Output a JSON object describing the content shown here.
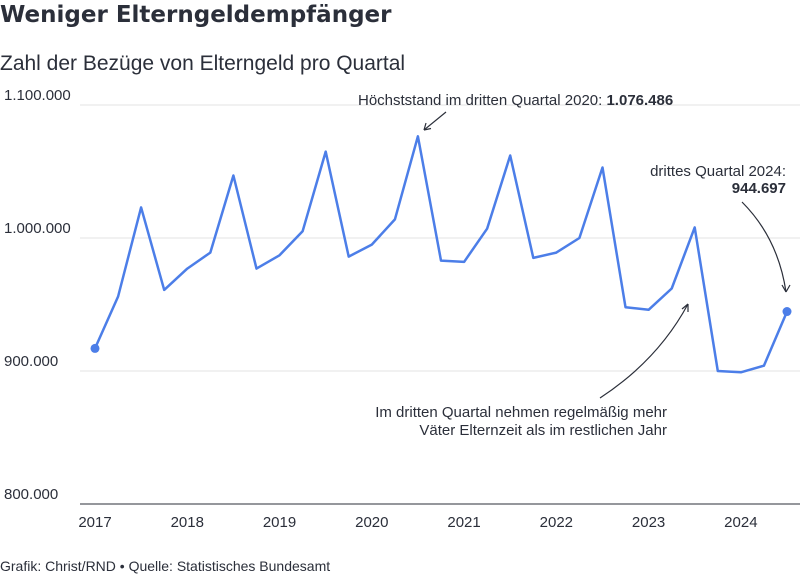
{
  "chart_data": {
    "type": "line",
    "title": "Weniger Elterngeldempfänger",
    "subtitle": "Zahl der Bezüge von Elterngeld pro Quartal",
    "footer": "Grafik: Christ/RND • Quelle: Statistisches Bundesamt",
    "ylim": [
      800000,
      1100000
    ],
    "yticks": [
      800000,
      900000,
      1000000,
      1100000
    ],
    "ytick_labels": [
      "800.000",
      "900.000",
      "1.000.000",
      "1.100.000"
    ],
    "xtick_labels": [
      "2017",
      "2018",
      "2019",
      "2020",
      "2021",
      "2022",
      "2023",
      "2024"
    ],
    "grid": true,
    "series": [
      {
        "values": [
          917000,
          956000,
          1023000,
          961000,
          977000,
          989000,
          1047000,
          977000,
          987000,
          1005000,
          1065000,
          986000,
          995000,
          1014000,
          1076486,
          983000,
          982000,
          1007000,
          1062000,
          985000,
          989000,
          1000000,
          1053000,
          948000,
          946000,
          962000,
          1008000,
          900000,
          899000,
          904000,
          944697
        ]
      }
    ],
    "annotations": {
      "peak_text": "Höchststand im dritten Quartal 2020: ",
      "peak_value": "1.076.486",
      "last_text": "drittes Quartal 2024:",
      "last_value": "944.697",
      "note_line1": "Im dritten Quartal nehmen regelmäßig mehr",
      "note_line2": "Väter Elternzeit als im restlichen Jahr"
    },
    "colors": {
      "line": "#4c7ee8",
      "text": "#2b2f3a",
      "grid": "#e3e3e3"
    }
  }
}
